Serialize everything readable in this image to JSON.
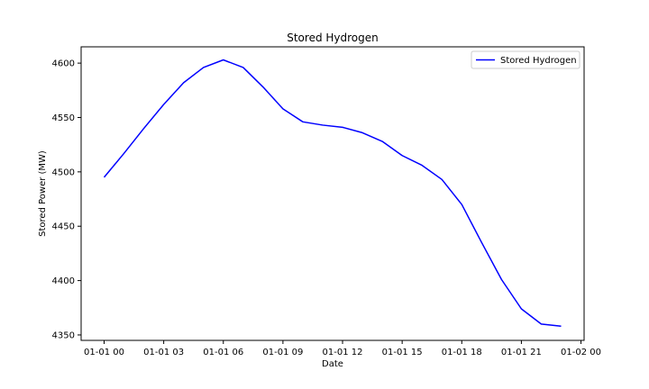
{
  "chart_data": {
    "type": "line",
    "title": "Stored Hydrogen",
    "xlabel": "Date",
    "ylabel": "Stored Power (MW)",
    "x": [
      "01-01 00",
      "01-01 01",
      "01-01 02",
      "01-01 03",
      "01-01 04",
      "01-01 05",
      "01-01 06",
      "01-01 07",
      "01-01 08",
      "01-01 09",
      "01-01 10",
      "01-01 11",
      "01-01 12",
      "01-01 13",
      "01-01 14",
      "01-01 15",
      "01-01 16",
      "01-01 17",
      "01-01 18",
      "01-01 19",
      "01-01 20",
      "01-01 21",
      "01-01 22",
      "01-01 23"
    ],
    "xlim": [
      "01-01 00",
      "01-02 00"
    ],
    "xticks": [
      "01-01 00",
      "01-01 03",
      "01-01 06",
      "01-01 09",
      "01-01 12",
      "01-01 15",
      "01-01 18",
      "01-01 21",
      "01-02 00"
    ],
    "ylim": [
      4345,
      4615
    ],
    "yticks": [
      4350,
      4400,
      4450,
      4500,
      4550,
      4600
    ],
    "grid": false,
    "legend_position": "top-right",
    "series": [
      {
        "name": "Stored Hydrogen",
        "color": "#0000ff",
        "values": [
          4495,
          4517,
          4540,
          4562,
          4582,
          4596,
          4603,
          4596,
          4578,
          4558,
          4546,
          4543,
          4541,
          4536,
          4528,
          4515,
          4506,
          4493,
          4470,
          4435,
          4401,
          4374,
          4360,
          4358
        ]
      }
    ]
  }
}
